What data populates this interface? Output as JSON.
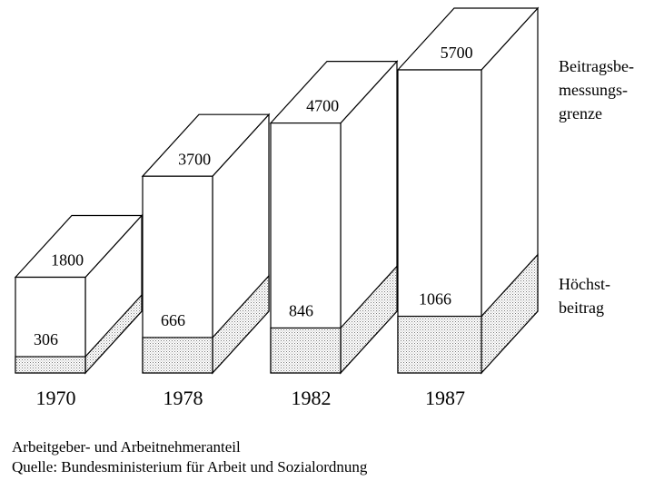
{
  "chart_data": {
    "type": "bar3d",
    "categories": [
      "1970",
      "1978",
      "1982",
      "1987"
    ],
    "series": [
      {
        "name": "Beitragsbe-\nmessungs-\ngrenze",
        "color": "#ffffff",
        "values": [
          1800,
          3700,
          4700,
          5700
        ]
      },
      {
        "name": "Höchst-\nbeitrag",
        "color": "#c8c8c8",
        "values": [
          306,
          666,
          846,
          1066
        ]
      }
    ],
    "note": "Arbeitgeber- und Arbeitnehmeranteil",
    "source": "Quelle: Bundesministerium für Arbeit und Sozialordnung"
  }
}
